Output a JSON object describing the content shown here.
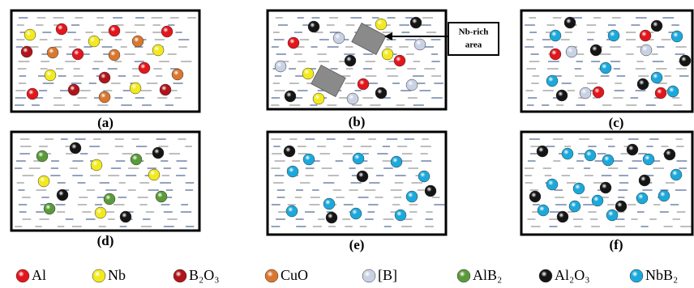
{
  "panels": [
    {
      "label": "(a)"
    },
    {
      "label": "(b)"
    },
    {
      "label": "(c)"
    },
    {
      "label": "(d)"
    },
    {
      "label": "(e)"
    },
    {
      "label": "(f)"
    }
  ],
  "callout": {
    "lines": [
      "Nb-rich",
      "area"
    ]
  },
  "legend": [
    {
      "label": "Al",
      "color": "#e3161c"
    },
    {
      "label": "Nb",
      "color": "#f2ea1c"
    },
    {
      "label": "B₂O₃",
      "color": "#b0141a"
    },
    {
      "label": "CuO",
      "color": "#d9772f"
    },
    {
      "label": "[B]",
      "color": "#c9d2e4"
    },
    {
      "label": "AlB₂",
      "color": "#5b9a3a"
    },
    {
      "label": "Al₂O₃",
      "color": "#151515"
    },
    {
      "label": "NbB₂",
      "color": "#1ba9dc"
    }
  ]
}
